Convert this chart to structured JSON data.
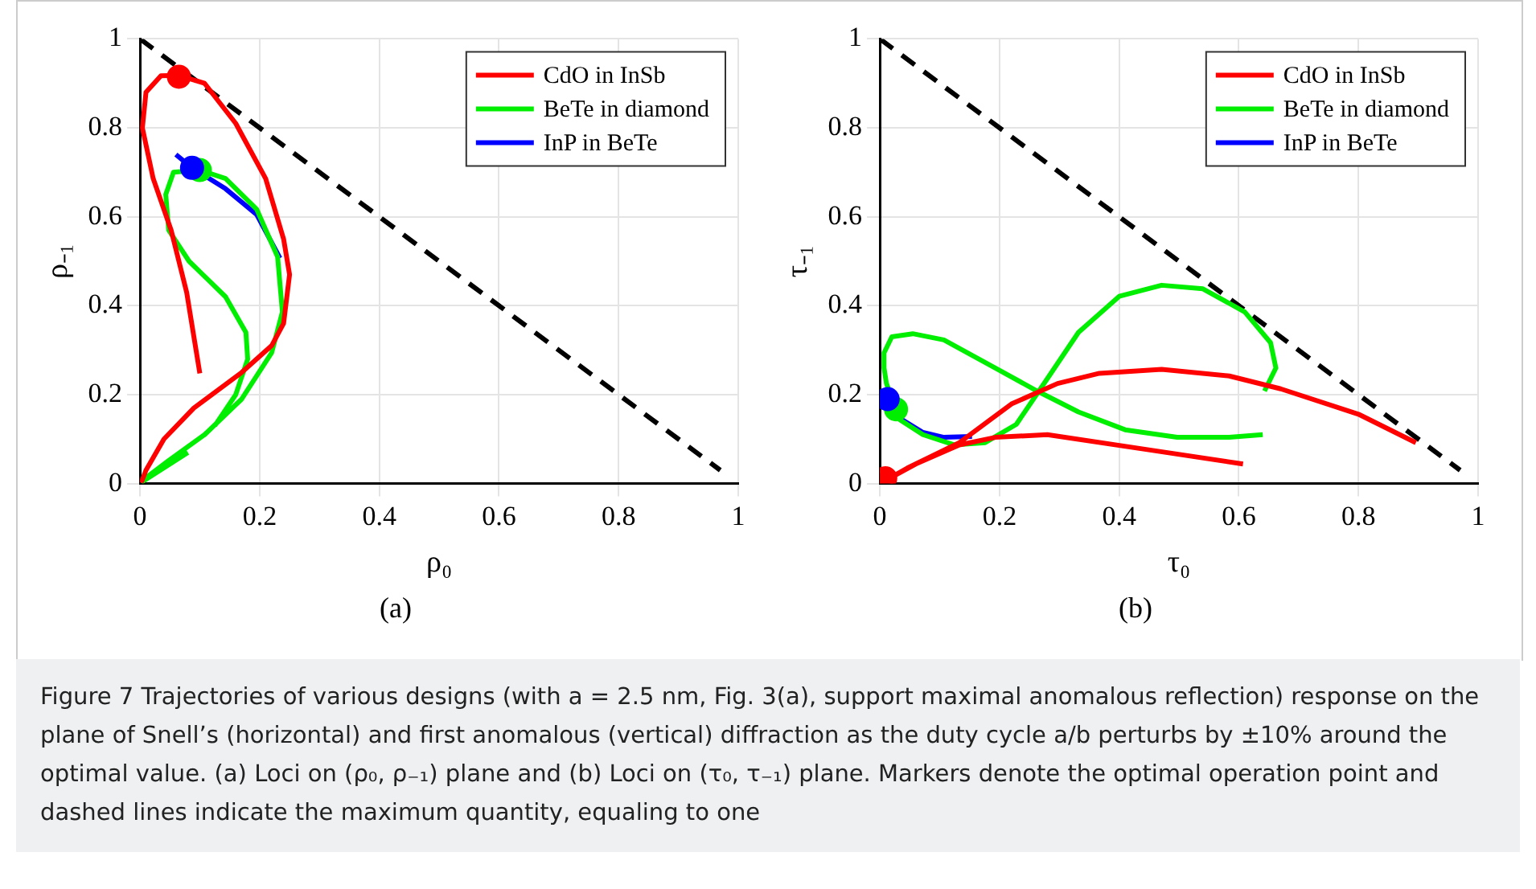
{
  "chart_data": [
    {
      "type": "line",
      "xlabel": "ρ₀",
      "ylabel": "ρ₋₁",
      "xlim": [
        0,
        1
      ],
      "ylim": [
        0,
        1
      ],
      "xticks": [
        0,
        0.2,
        0.4,
        0.6,
        0.8,
        1
      ],
      "yticks": [
        0,
        0.2,
        0.4,
        0.6,
        0.8,
        1
      ],
      "grid": true,
      "legend": "top right",
      "annotations": [
        "(a)"
      ],
      "series": [
        {
          "name": "CdO in InSb",
          "color": "#ff0000",
          "marker": "none",
          "line_style": "solid",
          "x": [
            0.1,
            0.078,
            0.052,
            0.022,
            0.004,
            0.01,
            0.035,
            0.065,
            0.108,
            0.16,
            0.21,
            0.24,
            0.25,
            0.24,
            0.22,
            0.17,
            0.09,
            0.04,
            0.01,
            0.002
          ],
          "values": [
            0.248,
            0.43,
            0.57,
            0.686,
            0.8,
            0.88,
            0.917,
            0.918,
            0.9,
            0.81,
            0.686,
            0.55,
            0.47,
            0.36,
            0.31,
            0.25,
            0.17,
            0.1,
            0.03,
            0.002
          ]
        },
        {
          "name": "BeTe in diamond",
          "color": "#00ee00",
          "marker": "none",
          "line_style": "solid",
          "x": [
            0.125,
            0.16,
            0.18,
            0.177,
            0.143,
            0.082,
            0.048,
            0.043,
            0.056,
            0.1,
            0.143,
            0.195,
            0.23,
            0.238,
            0.22,
            0.17,
            0.108,
            0.048,
            0.009,
            0.005,
            0.08
          ],
          "values": [
            0.13,
            0.2,
            0.28,
            0.34,
            0.42,
            0.5,
            0.57,
            0.65,
            0.7,
            0.705,
            0.686,
            0.617,
            0.51,
            0.386,
            0.294,
            0.19,
            0.11,
            0.052,
            0.012,
            0.005,
            0.07
          ]
        },
        {
          "name": "InP in BeTe",
          "color": "#0000ff",
          "marker": "none",
          "line_style": "solid",
          "x": [
            0.06,
            0.087,
            0.143,
            0.195,
            0.234
          ],
          "values": [
            0.74,
            0.71,
            0.663,
            0.605,
            0.507
          ]
        },
        {
          "type": "scatter",
          "color": "#ff0000",
          "marker": "circle",
          "x": [
            0.065
          ],
          "values": [
            0.915
          ]
        },
        {
          "type": "scatter",
          "color": "#00ee00",
          "marker": "circle",
          "x": [
            0.1
          ],
          "values": [
            0.705
          ]
        },
        {
          "type": "scatter",
          "color": "#0000ff",
          "marker": "circle",
          "x": [
            0.087
          ],
          "values": [
            0.71
          ]
        },
        {
          "color": "#000000",
          "marker": "none",
          "line_style": "dashed",
          "x": [
            0,
            0.97
          ],
          "values": [
            1,
            0.03
          ]
        }
      ]
    },
    {
      "type": "line",
      "xlabel": "τ₀",
      "ylabel": "τ₋₁",
      "xlim": [
        0,
        1
      ],
      "ylim": [
        0,
        1
      ],
      "xticks": [
        0,
        0.2,
        0.4,
        0.6,
        0.8,
        1
      ],
      "yticks": [
        0,
        0.2,
        0.4,
        0.6,
        0.8,
        1
      ],
      "grid": true,
      "legend": "top right",
      "annotations": [
        "(b)",
        "Figure 7  Trajectories of various designs (with a = 2.5 nm, Fig. 3(a), support maximal anomalous reflection) response on the plane of Snell’s (horizontal) and first anomalous (vertical) diffraction as the duty cycle a/b perturbs by ±10% around the optimal value. (a) Loci on (ρ₀, ρ₋₁) plane and (b) Loci on (τ₀, τ₋₁) plane. Markers denote the optimal operation point and dashed lines indicate the maximum quantity, equaling to one"
      ],
      "series": [
        {
          "name": "CdO in InSb",
          "color": "#ff0000",
          "marker": "none",
          "line_style": "solid",
          "x": [
            0.607,
            0.454,
            0.28,
            0.193,
            0.133,
            0.063,
            0.011,
            0.046,
            0.133,
            0.22,
            0.297,
            0.367,
            0.471,
            0.584,
            0.67,
            0.8,
            0.896
          ],
          "values": [
            0.044,
            0.075,
            0.11,
            0.104,
            0.087,
            0.046,
            0.008,
            0.035,
            0.092,
            0.179,
            0.225,
            0.248,
            0.257,
            0.242,
            0.213,
            0.156,
            0.092
          ]
        },
        {
          "name": "BeTe in diamond",
          "color": "#00ee00",
          "marker": "none",
          "line_style": "solid",
          "x": [
            0.643,
            0.662,
            0.653,
            0.61,
            0.54,
            0.471,
            0.4,
            0.332,
            0.28,
            0.228,
            0.176,
            0.124,
            0.072,
            0.033,
            0.027,
            0.011,
            0.007,
            0.007,
            0.02,
            0.055,
            0.107,
            0.193,
            0.263,
            0.332,
            0.41,
            0.497,
            0.584,
            0.64
          ],
          "values": [
            0.208,
            0.26,
            0.317,
            0.386,
            0.438,
            0.446,
            0.421,
            0.34,
            0.236,
            0.133,
            0.092,
            0.087,
            0.11,
            0.144,
            0.167,
            0.225,
            0.26,
            0.294,
            0.33,
            0.337,
            0.323,
            0.26,
            0.208,
            0.161,
            0.121,
            0.104,
            0.104,
            0.11
          ]
        },
        {
          "name": "InP in BeTe",
          "color": "#0000ff",
          "marker": "none",
          "line_style": "solid",
          "x": [
            0.013,
            0.037,
            0.072,
            0.107,
            0.154
          ],
          "values": [
            0.19,
            0.144,
            0.115,
            0.104,
            0.106
          ]
        },
        {
          "type": "scatter",
          "color": "#ff0000",
          "marker": "circle",
          "x": [
            0.009
          ],
          "values": [
            0.012
          ]
        },
        {
          "type": "scatter",
          "color": "#00ee00",
          "marker": "circle",
          "x": [
            0.027
          ],
          "values": [
            0.167
          ]
        },
        {
          "type": "scatter",
          "color": "#0000ff",
          "marker": "circle",
          "x": [
            0.013
          ],
          "values": [
            0.19
          ]
        },
        {
          "color": "#000000",
          "marker": "none",
          "line_style": "dashed",
          "x": [
            0,
            0.97
          ],
          "values": [
            1,
            0.03
          ]
        }
      ]
    }
  ]
}
